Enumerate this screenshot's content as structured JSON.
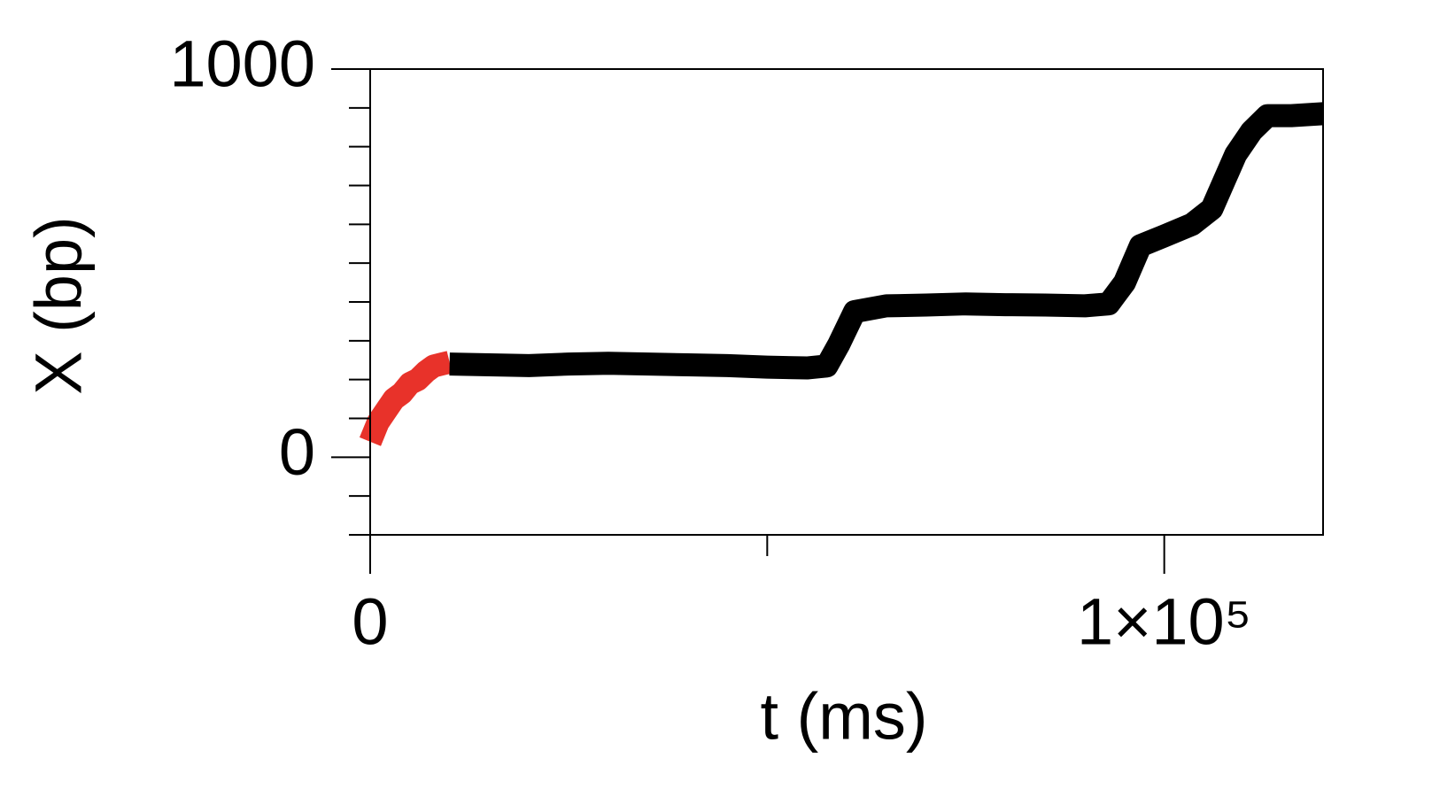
{
  "chart_data": {
    "type": "line",
    "xlabel": "t (ms)",
    "ylabel": "X (bp)",
    "xlim": [
      0,
      120000
    ],
    "ylim": [
      -200,
      1000
    ],
    "xticks": [
      0,
      {
        "value": 100000,
        "label": "1×10⁵"
      }
    ],
    "xminorticks": [
      50000
    ],
    "yticks": [
      0,
      1000
    ],
    "yminorticks": [
      -200,
      -100,
      100,
      200,
      300,
      400,
      500,
      600,
      700,
      800,
      900
    ],
    "grid": false,
    "series": [
      {
        "color": "#e8322a",
        "x": [
          0,
          1000,
          2000,
          3000,
          4000,
          5000,
          6000,
          7000,
          8000,
          9000,
          10000
        ],
        "values": [
          40,
          90,
          120,
          150,
          165,
          190,
          200,
          220,
          235,
          240,
          245
        ]
      },
      {
        "color": "#000000",
        "x": [
          10000,
          15000,
          20000,
          25000,
          30000,
          35000,
          40000,
          45000,
          50000,
          55000,
          57500,
          59000,
          61000,
          65000,
          70000,
          75000,
          80000,
          85000,
          90000,
          93000,
          95000,
          97000,
          100000,
          103500,
          106000,
          109000,
          111000,
          113000,
          116000,
          120000
        ],
        "values": [
          240,
          238,
          236,
          240,
          242,
          240,
          238,
          236,
          232,
          230,
          235,
          290,
          375,
          390,
          392,
          395,
          393,
          392,
          390,
          395,
          450,
          545,
          570,
          600,
          640,
          780,
          840,
          880,
          880,
          885
        ]
      }
    ]
  }
}
